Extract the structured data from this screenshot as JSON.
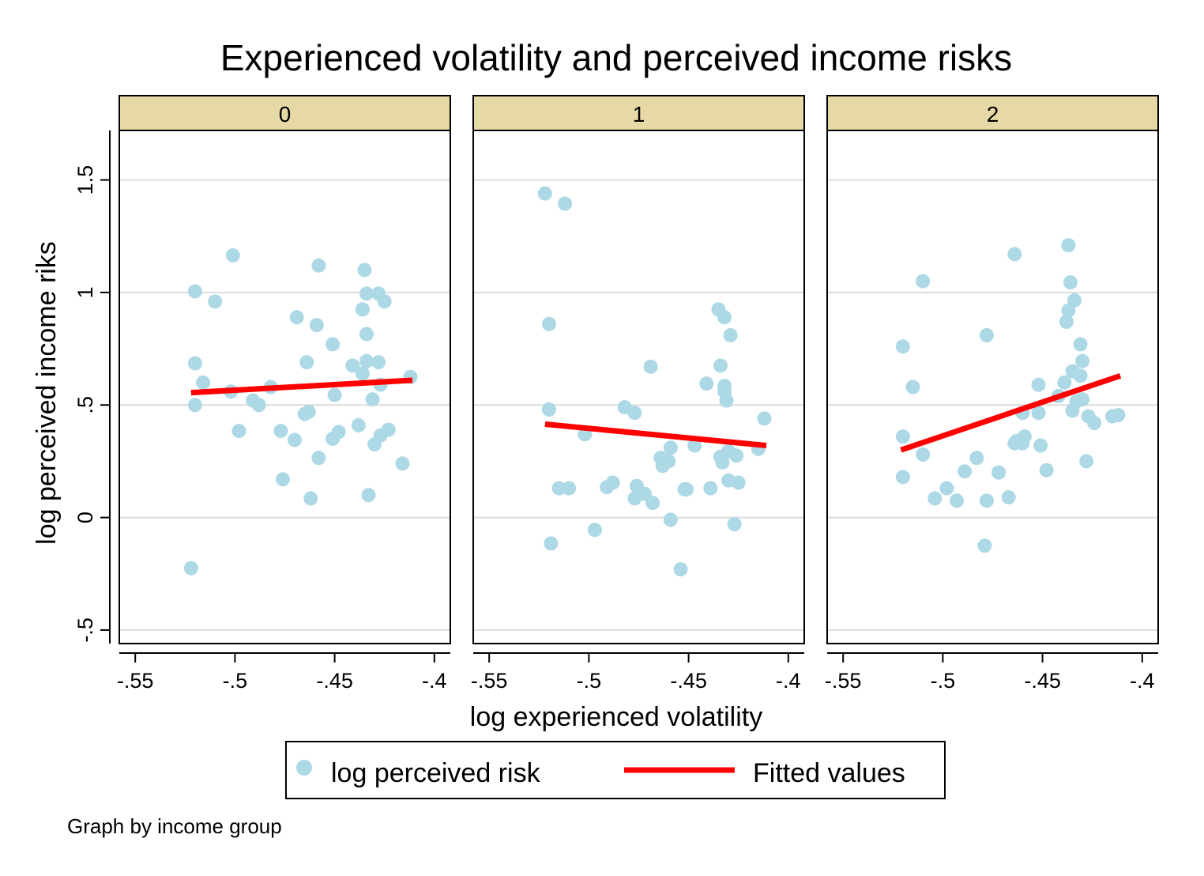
{
  "chart_data": {
    "type": "scatter",
    "title": "Experienced volatility and perceived income risks",
    "xlabel": "log experienced volatility",
    "ylabel": "log perceived income riks",
    "note": "Graph by income group",
    "xlim": [
      -0.558,
      -0.392
    ],
    "ylim": [
      -0.56,
      1.72
    ],
    "x_ticks": [
      -0.55,
      -0.5,
      -0.45,
      -0.4
    ],
    "x_tick_labels": [
      "-.55",
      "-.5",
      "-.45",
      "-.4"
    ],
    "y_ticks": [
      -0.5,
      0,
      0.5,
      1,
      1.5
    ],
    "y_tick_labels": [
      "-.5",
      "0",
      ".5",
      "1",
      "1.5"
    ],
    "grid": "horizontal",
    "legend_position": "bottom",
    "legend": {
      "scatter_label": "log perceived risk",
      "line_label": "Fitted values"
    },
    "colors": {
      "scatter": "#add8e6",
      "fit": "#ff0000",
      "strip": "#e6d9a6",
      "grid": "#dcdcdc"
    },
    "panels": [
      {
        "label": "0",
        "points": [
          [
            -0.52,
            1.005
          ],
          [
            -0.51,
            0.96
          ],
          [
            -0.501,
            1.165
          ],
          [
            -0.52,
            0.685
          ],
          [
            -0.516,
            0.6
          ],
          [
            -0.52,
            0.5
          ],
          [
            -0.502,
            0.56
          ],
          [
            -0.491,
            0.52
          ],
          [
            -0.488,
            0.5
          ],
          [
            -0.498,
            0.385
          ],
          [
            -0.482,
            0.58
          ],
          [
            -0.477,
            0.385
          ],
          [
            -0.476,
            0.17
          ],
          [
            -0.47,
            0.345
          ],
          [
            -0.469,
            0.89
          ],
          [
            -0.464,
            0.69
          ],
          [
            -0.465,
            0.46
          ],
          [
            -0.463,
            0.47
          ],
          [
            -0.459,
            0.855
          ],
          [
            -0.458,
            1.12
          ],
          [
            -0.458,
            0.265
          ],
          [
            -0.462,
            0.085
          ],
          [
            -0.451,
            0.77
          ],
          [
            -0.45,
            0.545
          ],
          [
            -0.451,
            0.35
          ],
          [
            -0.448,
            0.38
          ],
          [
            -0.441,
            0.675
          ],
          [
            -0.438,
            0.41
          ],
          [
            -0.436,
            0.925
          ],
          [
            -0.436,
            0.64
          ],
          [
            -0.435,
            1.1
          ],
          [
            -0.434,
            0.995
          ],
          [
            -0.434,
            0.815
          ],
          [
            -0.434,
            0.695
          ],
          [
            -0.433,
            0.1
          ],
          [
            -0.431,
            0.525
          ],
          [
            -0.43,
            0.325
          ],
          [
            -0.428,
            0.995
          ],
          [
            -0.428,
            0.69
          ],
          [
            -0.427,
            0.59
          ],
          [
            -0.427,
            0.365
          ],
          [
            -0.425,
            0.96
          ],
          [
            -0.423,
            0.39
          ],
          [
            -0.416,
            0.24
          ],
          [
            -0.412,
            0.625
          ],
          [
            -0.522,
            -0.225
          ]
        ],
        "fit": [
          [
            -0.522,
            0.555
          ],
          [
            -0.411,
            0.61
          ]
        ]
      },
      {
        "label": "1",
        "points": [
          [
            -0.522,
            1.44
          ],
          [
            -0.512,
            1.395
          ],
          [
            -0.52,
            0.86
          ],
          [
            -0.52,
            0.48
          ],
          [
            -0.519,
            -0.115
          ],
          [
            -0.515,
            0.13
          ],
          [
            -0.51,
            0.13
          ],
          [
            -0.502,
            0.37
          ],
          [
            -0.497,
            -0.055
          ],
          [
            -0.491,
            0.135
          ],
          [
            -0.488,
            0.155
          ],
          [
            -0.482,
            0.49
          ],
          [
            -0.477,
            0.465
          ],
          [
            -0.476,
            0.14
          ],
          [
            -0.477,
            0.085
          ],
          [
            -0.472,
            0.105
          ],
          [
            -0.469,
            0.67
          ],
          [
            -0.468,
            0.065
          ],
          [
            -0.464,
            0.265
          ],
          [
            -0.463,
            0.23
          ],
          [
            -0.46,
            0.25
          ],
          [
            -0.459,
            0.31
          ],
          [
            -0.459,
            -0.01
          ],
          [
            -0.454,
            -0.23
          ],
          [
            -0.452,
            0.125
          ],
          [
            -0.451,
            0.125
          ],
          [
            -0.447,
            0.32
          ],
          [
            -0.441,
            0.595
          ],
          [
            -0.439,
            0.13
          ],
          [
            -0.435,
            0.925
          ],
          [
            -0.434,
            0.675
          ],
          [
            -0.434,
            0.27
          ],
          [
            -0.433,
            0.245
          ],
          [
            -0.432,
            0.89
          ],
          [
            -0.432,
            0.585
          ],
          [
            -0.432,
            0.56
          ],
          [
            -0.431,
            0.52
          ],
          [
            -0.43,
            0.295
          ],
          [
            -0.43,
            0.165
          ],
          [
            -0.429,
            0.81
          ],
          [
            -0.427,
            -0.03
          ],
          [
            -0.426,
            0.275
          ],
          [
            -0.425,
            0.155
          ],
          [
            -0.415,
            0.305
          ],
          [
            -0.412,
            0.44
          ]
        ],
        "fit": [
          [
            -0.522,
            0.415
          ],
          [
            -0.411,
            0.32
          ]
        ]
      },
      {
        "label": "2",
        "points": [
          [
            -0.52,
            0.76
          ],
          [
            -0.51,
            1.05
          ],
          [
            -0.515,
            0.58
          ],
          [
            -0.52,
            0.36
          ],
          [
            -0.52,
            0.18
          ],
          [
            -0.51,
            0.28
          ],
          [
            -0.504,
            0.085
          ],
          [
            -0.498,
            0.13
          ],
          [
            -0.493,
            0.075
          ],
          [
            -0.489,
            0.205
          ],
          [
            -0.483,
            0.265
          ],
          [
            -0.478,
            0.81
          ],
          [
            -0.478,
            0.075
          ],
          [
            -0.479,
            -0.125
          ],
          [
            -0.472,
            0.2
          ],
          [
            -0.467,
            0.09
          ],
          [
            -0.464,
            1.17
          ],
          [
            -0.464,
            0.33
          ],
          [
            -0.463,
            0.34
          ],
          [
            -0.46,
            0.465
          ],
          [
            -0.46,
            0.33
          ],
          [
            -0.459,
            0.36
          ],
          [
            -0.452,
            0.59
          ],
          [
            -0.452,
            0.465
          ],
          [
            -0.451,
            0.32
          ],
          [
            -0.448,
            0.21
          ],
          [
            -0.442,
            0.54
          ],
          [
            -0.439,
            0.6
          ],
          [
            -0.438,
            0.87
          ],
          [
            -0.437,
            0.92
          ],
          [
            -0.437,
            1.21
          ],
          [
            -0.436,
            1.045
          ],
          [
            -0.435,
            0.65
          ],
          [
            -0.435,
            0.475
          ],
          [
            -0.434,
            0.965
          ],
          [
            -0.433,
            0.515
          ],
          [
            -0.431,
            0.77
          ],
          [
            -0.431,
            0.63
          ],
          [
            -0.43,
            0.695
          ],
          [
            -0.43,
            0.525
          ],
          [
            -0.428,
            0.25
          ],
          [
            -0.427,
            0.45
          ],
          [
            -0.424,
            0.42
          ],
          [
            -0.415,
            0.45
          ],
          [
            -0.412,
            0.455
          ]
        ],
        "fit": [
          [
            -0.521,
            0.3
          ],
          [
            -0.411,
            0.63
          ]
        ]
      }
    ]
  }
}
